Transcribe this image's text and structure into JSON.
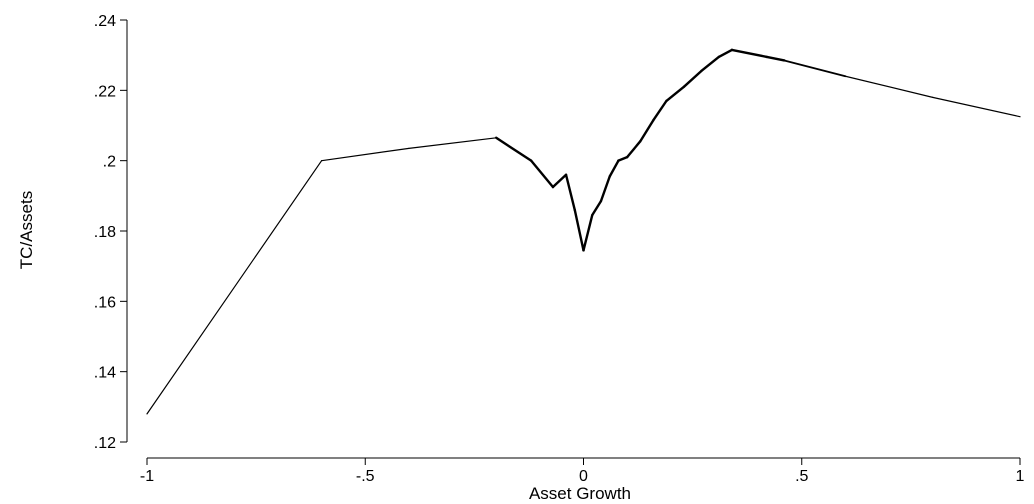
{
  "chart_data": {
    "type": "line",
    "title": "",
    "xlabel": "Asset Growth",
    "ylabel": "TC/Assets",
    "xlim": [
      -1,
      1
    ],
    "ylim": [
      0.12,
      0.24
    ],
    "x_ticks": [
      -1,
      -0.5,
      0,
      0.5,
      1
    ],
    "x_tick_labels": [
      "-1",
      "-.5",
      "0",
      ".5",
      "1"
    ],
    "y_ticks": [
      0.12,
      0.14,
      0.16,
      0.18,
      0.2,
      0.22,
      0.24
    ],
    "y_tick_labels": [
      ".12",
      ".14",
      ".16",
      ".18",
      ".2",
      ".22",
      ".24"
    ],
    "grid": false,
    "series": [
      {
        "color": "#000000",
        "points": [
          [
            -1.0,
            0.128
          ],
          [
            -0.6,
            0.2
          ],
          [
            -0.4,
            0.2035
          ],
          [
            -0.2,
            0.2065
          ],
          [
            -0.12,
            0.2
          ],
          [
            -0.07,
            0.1925
          ],
          [
            -0.04,
            0.196
          ],
          [
            -0.02,
            0.186
          ],
          [
            0.0,
            0.1745
          ],
          [
            0.02,
            0.1845
          ],
          [
            0.04,
            0.1885
          ],
          [
            0.06,
            0.1955
          ],
          [
            0.08,
            0.2
          ],
          [
            0.1,
            0.201
          ],
          [
            0.13,
            0.2055
          ],
          [
            0.16,
            0.2115
          ],
          [
            0.19,
            0.217
          ],
          [
            0.23,
            0.221
          ],
          [
            0.27,
            0.2255
          ],
          [
            0.31,
            0.2295
          ],
          [
            0.34,
            0.2315
          ],
          [
            0.42,
            0.2295
          ],
          [
            0.46,
            0.2285
          ],
          [
            0.6,
            0.224
          ],
          [
            0.8,
            0.218
          ],
          [
            1.0,
            0.2125
          ]
        ]
      }
    ]
  }
}
